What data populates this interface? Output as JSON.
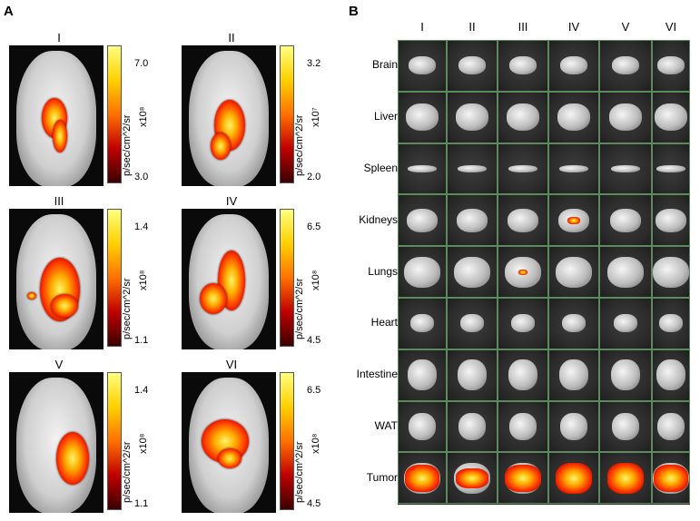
{
  "panel_a": {
    "letter": "A",
    "mice": [
      {
        "label": "I",
        "unit": "p/sec/cm^2/sr",
        "exponent": "x10⁸",
        "max": "7.0",
        "min": "3.0"
      },
      {
        "label": "II",
        "unit": "p/sec/cm^2/sr",
        "exponent": "x10⁷",
        "max": "3.2",
        "min": "2.0"
      },
      {
        "label": "III",
        "unit": "p/sec/cm^2/sr",
        "exponent": "x10⁸",
        "max": "1.4",
        "min": "1.1"
      },
      {
        "label": "IV",
        "unit": "p/sec/cm^2/sr",
        "exponent": "x10⁸",
        "max": "6.5",
        "min": "4.5"
      },
      {
        "label": "V",
        "unit": "p/sec/cm^2/sr",
        "exponent": "x10⁸",
        "max": "1.4",
        "min": "1.1"
      },
      {
        "label": "VI",
        "unit": "p/sec/cm^2/sr",
        "exponent": "x10⁸",
        "max": "6.5",
        "min": "4.5"
      }
    ]
  },
  "panel_b": {
    "letter": "B",
    "columns": [
      "I",
      "II",
      "III",
      "IV",
      "V",
      "VI"
    ],
    "rows": [
      "Brain",
      "Liver",
      "Spleen",
      "Kidneys",
      "Lungs",
      "Heart",
      "Intestine",
      "WAT",
      "Tumor"
    ]
  },
  "colors": {
    "colorbar_high": "#ffff80",
    "colorbar_low": "#3a0000",
    "grid_line": "#5b8a5b",
    "background_dark": "#2a2a2a"
  }
}
